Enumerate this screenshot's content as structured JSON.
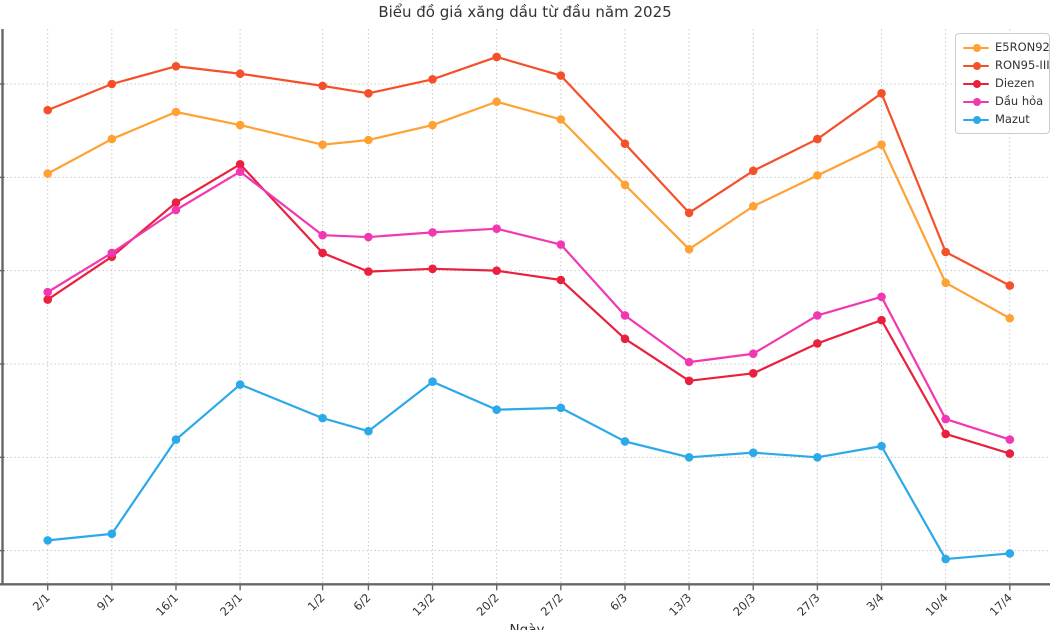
{
  "figure": {
    "background": "#ffffff"
  },
  "chart_data": {
    "type": "line",
    "title": "Biểu đồ giá xăng dầu từ đầu năm 2025",
    "xlabel": "Ngày",
    "ylabel": "",
    "x_labels": [
      "2/1",
      "9/1",
      "16/1",
      "23/1",
      "1/2",
      "6/2",
      "13/2",
      "20/2",
      "27/2",
      "6/3",
      "13/3",
      "20/3",
      "27/3",
      "3/4",
      "10/4",
      "17/4"
    ],
    "x_days_from_start": [
      0,
      7,
      14,
      21,
      30,
      35,
      42,
      49,
      56,
      63,
      70,
      77,
      84,
      91,
      98,
      105
    ],
    "y_gridline_values": [
      16000,
      17000,
      18000,
      19000,
      20000,
      21000
    ],
    "ylim": [
      15640,
      21590
    ],
    "y_tick_labels_visible": false,
    "grid": "dotted",
    "legend_position": "upper right",
    "series": [
      {
        "name": "E5RON92",
        "color": "#FFA133",
        "values": [
          20040,
          20410,
          20700,
          20560,
          20350,
          20400,
          20560,
          20810,
          20620,
          19920,
          19230,
          19690,
          20020,
          20350,
          18870,
          18490
        ]
      },
      {
        "name": "RON95-III",
        "color": "#F4502A",
        "values": [
          20720,
          21000,
          21190,
          21110,
          20980,
          20900,
          21050,
          21290,
          21090,
          20360,
          19620,
          20070,
          20410,
          20900,
          19200,
          18840
        ]
      },
      {
        "name": "Diezen",
        "color": "#E9203E",
        "values": [
          18690,
          19150,
          19730,
          20140,
          19190,
          18990,
          19020,
          19000,
          18900,
          18270,
          17820,
          17900,
          18220,
          18470,
          17250,
          17040
        ]
      },
      {
        "name": "Dầu hỏa",
        "color": "#F138B2",
        "values": [
          18770,
          19190,
          19650,
          20060,
          19380,
          19360,
          19410,
          19450,
          19280,
          18520,
          18020,
          18110,
          18520,
          18720,
          17410,
          17190
        ]
      },
      {
        "name": "Mazut",
        "color": "#2BA9E9",
        "values": [
          16110,
          16180,
          17190,
          17780,
          17420,
          17280,
          17810,
          17510,
          17530,
          17170,
          17000,
          17050,
          17000,
          17120,
          15910,
          15970
        ]
      }
    ]
  },
  "style": {
    "axis_color": "#666666",
    "grid_color": "#c9c9c9",
    "tick_label_color": "#333333",
    "title_color": "#333333",
    "legend_border": "#cccccc",
    "legend_text": "#333333"
  }
}
